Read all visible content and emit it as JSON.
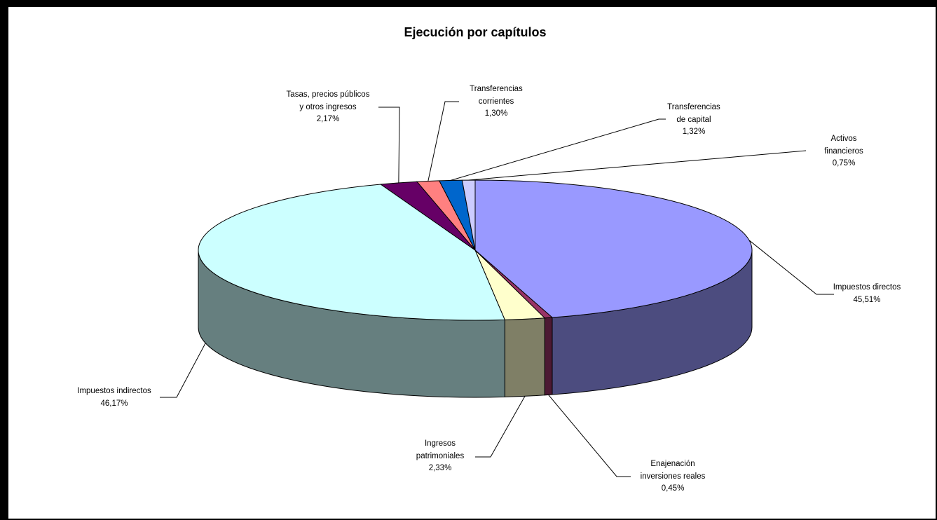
{
  "chart_data": {
    "type": "pie3d",
    "title": "Ejecución por capítulos",
    "categories": [
      "Impuestos directos",
      "Enajenación\ninversiones reales",
      "Ingresos\npatrimoniales",
      "Impuestos indirectos",
      "Tasas, precios públicos\ny otros ingresos",
      "Transferencias\ncorrientes",
      "Transferencias\nde capital",
      "Activos\nfinancieros"
    ],
    "values": [
      45.51,
      0.45,
      2.33,
      46.17,
      2.17,
      1.3,
      1.32,
      0.75
    ],
    "value_labels": [
      "45,51%",
      "0,45%",
      "2,33%",
      "46,17%",
      "2,17%",
      "1,30%",
      "1,32%",
      "0,75%"
    ],
    "colors": [
      "#9999ff",
      "#993366",
      "#ffffcc",
      "#ccffff",
      "#660066",
      "#ff8080",
      "#0066cc",
      "#ccccff"
    ]
  }
}
